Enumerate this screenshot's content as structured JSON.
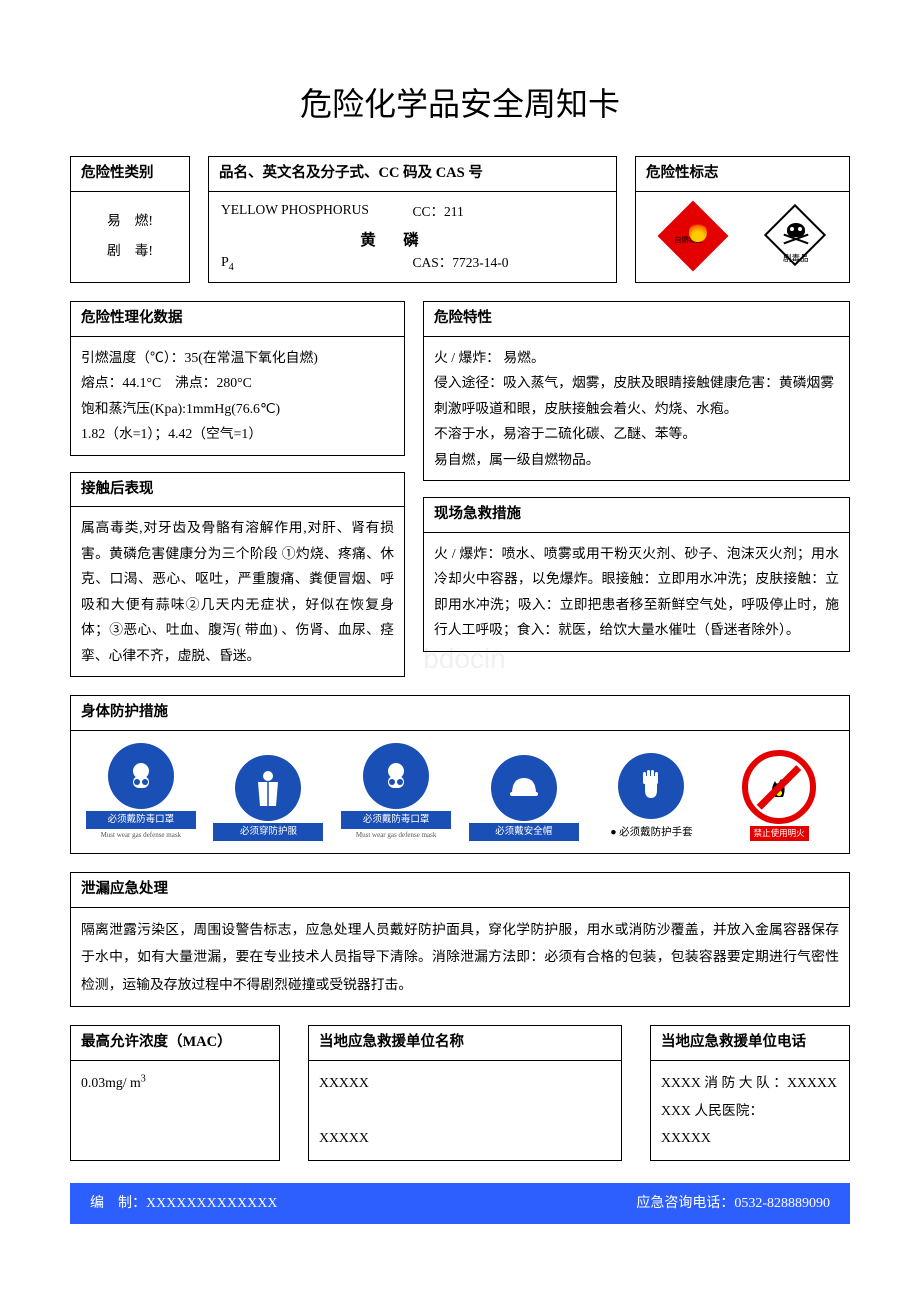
{
  "title": "危险化学品安全周知卡",
  "row1": {
    "category_header": "危险性类别",
    "category_line1": "易　燃!",
    "category_line2": "剧　毒!",
    "name_header": "品名、英文名及分子式、CC 码及 CAS 号",
    "en_name": "YELLOW PHOSPHORUS",
    "cc": "CC：211",
    "cn_name": "黄　磷",
    "formula_html": "P<sub>4</sub>",
    "cas": "CAS：7723-14-0",
    "sign_header": "危险性标志",
    "sign1_label": "自燃物品",
    "sign2_label": "剧毒品"
  },
  "row2": {
    "phys_header": "危险性理化数据",
    "phys_body": "引燃温度（℃）：35(在常温下氧化自燃)\n熔点：44.1°C　沸点：280°C\n饱和蒸汽压(Kpa):1mmHg(76.6℃)\n1.82（水=1）；4.42（空气=1）",
    "expo_header": "接触后表现",
    "expo_body": "属高毒类,对牙齿及骨骼有溶解作用,对肝、肾有损害。黄磷危害健康分为三个阶段 ①灼烧、疼痛、休克、口渴、恶心、呕吐，严重腹痛、粪便冒烟、呼吸和大便有蒜味②几天内无症状，好似在恢复身体；③恶心、吐血、腹泻( 带血) 、伤肾、血尿、痉挛、心律不齐，虚脱、昏迷。",
    "hazchar_header": "危险特性",
    "hazchar_body": "火 / 爆炸： 易燃。\n侵入途径：吸入蒸气，烟雾，皮肤及眼睛接触健康危害：黄磷烟雾刺激呼吸道和眼，皮肤接触会着火、灼烧、水疱。\n不溶于水，易溶于二硫化碳、乙醚、苯等。\n易自燃，属一级自燃物品。",
    "firstaid_header": "现场急救措施",
    "firstaid_body": "火 / 爆炸：喷水、喷雾或用干粉灭火剂、砂子、泡沫灭火剂；用水冷却火中容器，以免爆炸。眼接触：立即用水冲洗；皮肤接触：立即用水冲洗；吸入：立即把患者移至新鲜空气处，呼吸停止时，施行人工呼吸；食入：就医，给饮大量水催吐（昏迷者除外）。"
  },
  "ppe": {
    "header": "身体防护措施",
    "items": [
      {
        "label": "必须戴防毒口罩",
        "sub": "Must wear gas defense mask"
      },
      {
        "label": "必须穿防护服",
        "sub": ""
      },
      {
        "label": "必须戴防毒口罩",
        "sub": "Must wear gas defense mask"
      },
      {
        "label": "必须戴安全帽",
        "sub": ""
      },
      {
        "label": "● 必须戴防护手套",
        "sub": "",
        "plain": true
      },
      {
        "label": "禁止使用明火",
        "prohibit": true
      }
    ]
  },
  "spill": {
    "header": "泄漏应急处理",
    "body": "隔离泄露污染区，周围设警告标志，应急处理人员戴好防护面具，穿化学防护服，用水或消防沙覆盖，并放入金属容器保存于水中，如有大量泄漏，要在专业技术人员指导下清除。消除泄漏方法即：必须有合格的包装，包装容器要定期进行气密性检测，运输及存放过程中不得剧烈碰撞或受锐器打击。"
  },
  "row5": {
    "mac_header": "最高允许浓度（MAC）",
    "mac_body_html": "0.03mg/ m<sup>3</sup>",
    "unit_header": "当地应急救援单位名称",
    "unit_body": "XXXXX\n\nXXXXX",
    "tel_header": "当地应急救援单位电话",
    "tel_body": "XXXX 消 防 大 队 ：XXXXX\nXXX 人民医院：\nXXXXX"
  },
  "footer": {
    "left": "编　制：XXXXXXXXXXXXX",
    "right": "应急咨询电话：0532-828889090"
  },
  "colors": {
    "footer_bg": "#2d5fff",
    "ppe_blue": "#1a4fb5",
    "red": "#e30000"
  }
}
